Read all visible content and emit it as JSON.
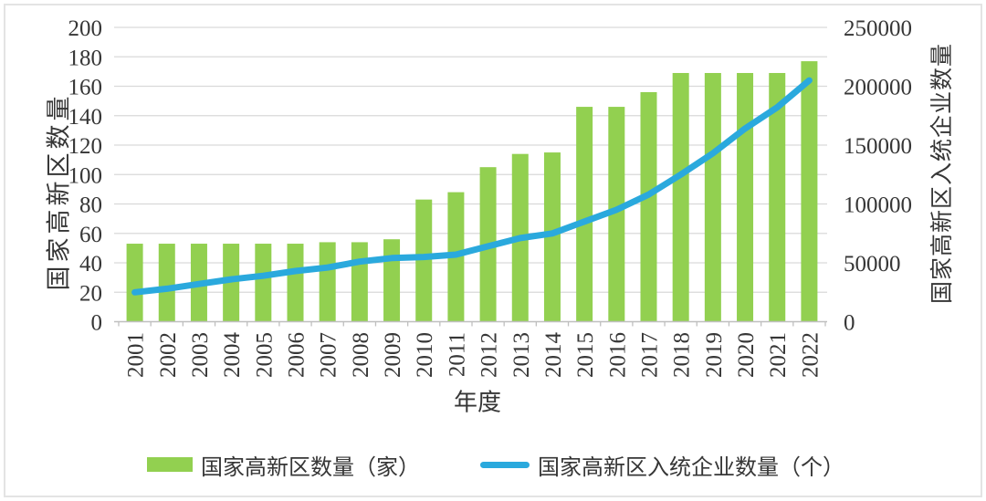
{
  "chart_data": {
    "type": "combo",
    "categories": [
      "2001",
      "2002",
      "2003",
      "2004",
      "2005",
      "2006",
      "2007",
      "2008",
      "2009",
      "2010",
      "2011",
      "2012",
      "2013",
      "2014",
      "2015",
      "2016",
      "2017",
      "2018",
      "2019",
      "2020",
      "2021",
      "2022"
    ],
    "series": [
      {
        "name": "国家高新区数量（家）",
        "type": "bar",
        "axis": "left",
        "color": "#92d050",
        "values": [
          53,
          53,
          53,
          53,
          53,
          53,
          54,
          54,
          56,
          83,
          88,
          105,
          114,
          115,
          146,
          146,
          156,
          169,
          169,
          169,
          169,
          177
        ]
      },
      {
        "name": "国家高新区入统企业数量（个）",
        "type": "line",
        "axis": "right",
        "color": "#2aa9dd",
        "values": [
          25000,
          28000,
          32000,
          36000,
          39000,
          43000,
          46000,
          51000,
          54000,
          55000,
          57000,
          64000,
          71000,
          75000,
          85000,
          95000,
          108000,
          125000,
          143000,
          164000,
          182000,
          205000
        ]
      }
    ],
    "left_axis": {
      "title": "国家高新区数量",
      "min": 0,
      "max": 200,
      "step": 20,
      "ticks": [
        "0",
        "20",
        "40",
        "60",
        "80",
        "100",
        "120",
        "140",
        "160",
        "180",
        "200"
      ]
    },
    "right_axis": {
      "title": "国家高新区入统企业数量",
      "min": 0,
      "max": 250000,
      "step": 50000,
      "ticks": [
        "0",
        "50000",
        "100000",
        "150000",
        "200000",
        "250000"
      ]
    },
    "xlabel": "年度",
    "grid": true,
    "legend_position": "bottom"
  },
  "legend": {
    "items": [
      {
        "label": "国家高新区数量（家）",
        "marker": "bar-swatch",
        "color": "#92d050"
      },
      {
        "label": "国家高新区入统企业数量（个）",
        "marker": "line-swatch",
        "color": "#2aa9dd"
      }
    ]
  },
  "colors": {
    "bar": "#92d050",
    "line": "#2aa9dd",
    "gridline": "#d9d9d9",
    "axis_line": "#bfbfbf",
    "text": "#363636",
    "frame_border": "#e4e4e4",
    "background": "#ffffff"
  }
}
